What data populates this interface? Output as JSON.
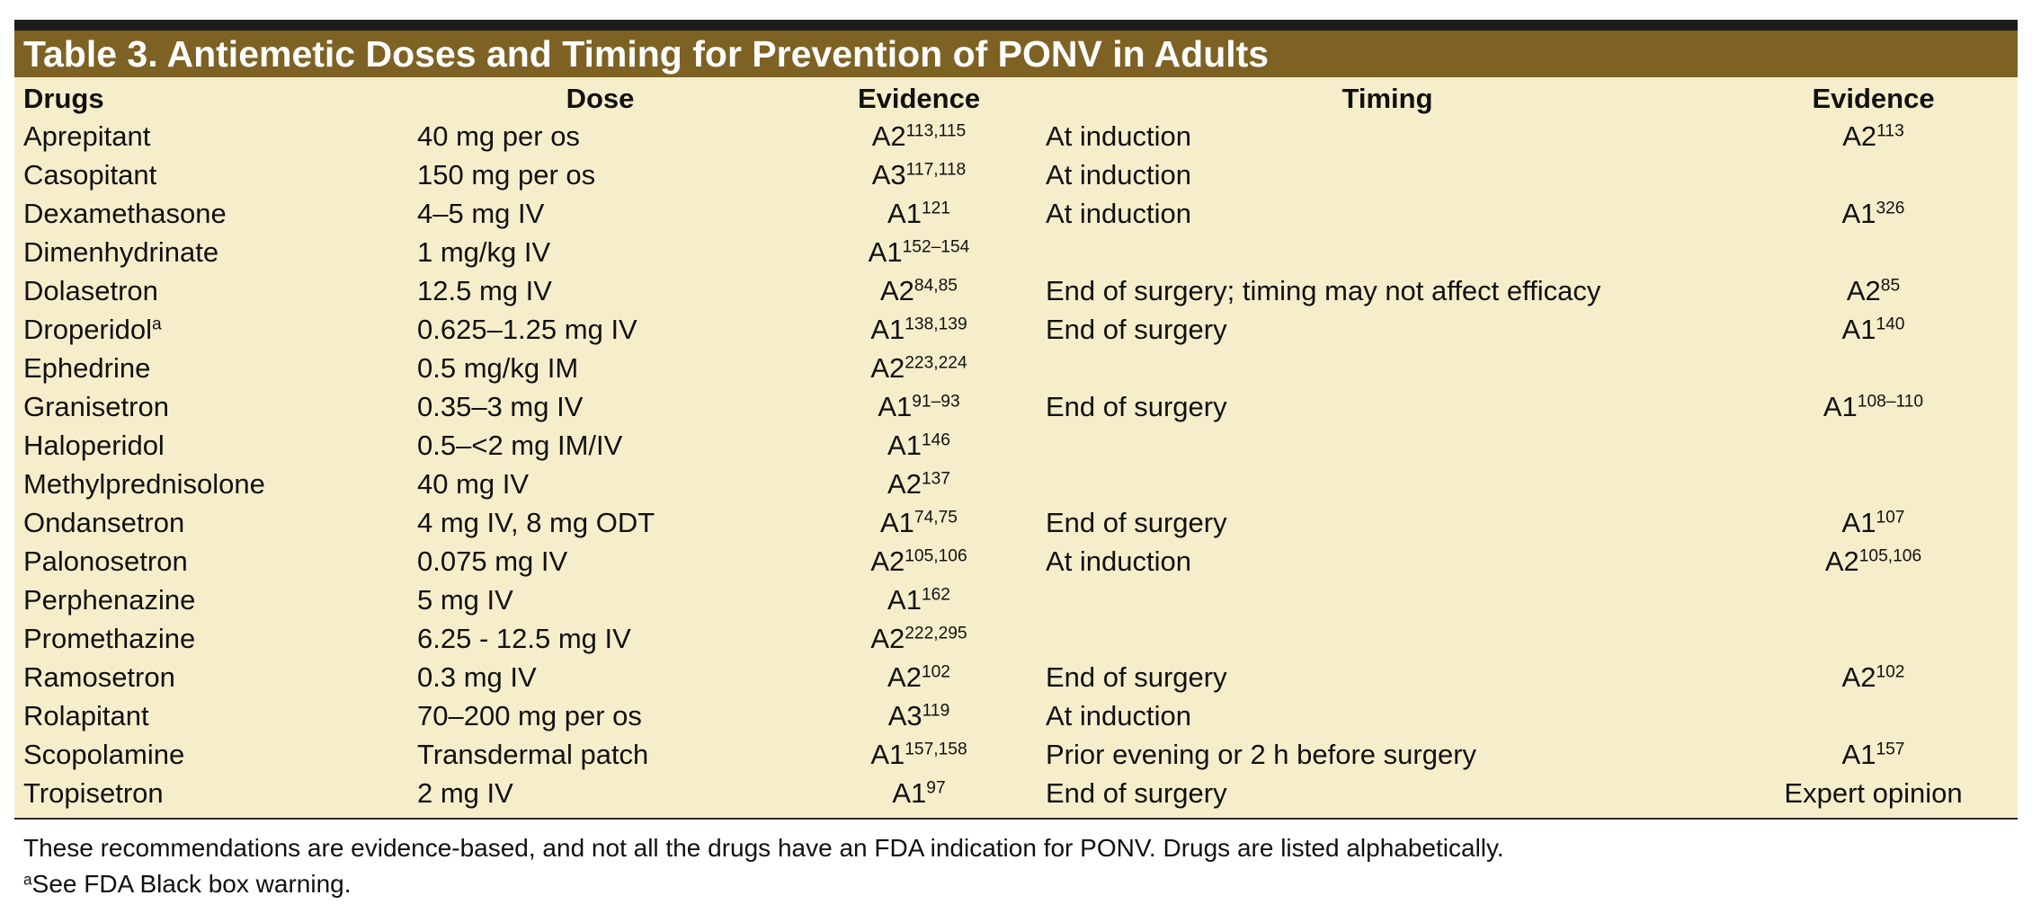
{
  "table": {
    "title": "Table 3.  Antiemetic Doses and Timing for Prevention of PONV in Adults",
    "headers": {
      "drugs": "Drugs",
      "dose": "Dose",
      "evidence1": "Evidence",
      "timing": "Timing",
      "evidence2": "Evidence"
    },
    "rows": [
      {
        "drug": "Aprepitant",
        "drug_sup": "",
        "dose": "40 mg per os",
        "ev1": "A2",
        "ev1_sup": "113,115",
        "timing": "At induction",
        "ev2": "A2",
        "ev2_sup": "113"
      },
      {
        "drug": "Casopitant",
        "drug_sup": "",
        "dose": "150 mg per os",
        "ev1": "A3",
        "ev1_sup": "117,118",
        "timing": "At induction",
        "ev2": "",
        "ev2_sup": ""
      },
      {
        "drug": "Dexamethasone",
        "drug_sup": "",
        "dose": "4–5 mg IV",
        "ev1": "A1",
        "ev1_sup": "121",
        "timing": "At induction",
        "ev2": "A1",
        "ev2_sup": "326"
      },
      {
        "drug": "Dimenhydrinate",
        "drug_sup": "",
        "dose": "1 mg/kg IV",
        "ev1": "A1",
        "ev1_sup": "152–154",
        "timing": "",
        "ev2": "",
        "ev2_sup": ""
      },
      {
        "drug": "Dolasetron",
        "drug_sup": "",
        "dose": "12.5 mg IV",
        "ev1": "A2",
        "ev1_sup": "84,85",
        "timing": "End of surgery; timing may not affect efficacy",
        "ev2": "A2",
        "ev2_sup": "85"
      },
      {
        "drug": "Droperidol",
        "drug_sup": "a",
        "dose": "0.625–1.25 mg IV",
        "ev1": "A1",
        "ev1_sup": "138,139",
        "timing": "End of surgery",
        "ev2": "A1",
        "ev2_sup": "140"
      },
      {
        "drug": "Ephedrine",
        "drug_sup": "",
        "dose": "0.5 mg/kg IM",
        "ev1": "A2",
        "ev1_sup": "223,224",
        "timing": "",
        "ev2": "",
        "ev2_sup": ""
      },
      {
        "drug": "Granisetron",
        "drug_sup": "",
        "dose": "0.35–3 mg IV",
        "ev1": "A1",
        "ev1_sup": "91–93",
        "timing": "End of surgery",
        "ev2": "A1",
        "ev2_sup": "108–110"
      },
      {
        "drug": "Haloperidol",
        "drug_sup": "",
        "dose": "0.5–<2 mg IM/IV",
        "ev1": "A1",
        "ev1_sup": "146",
        "timing": "",
        "ev2": "",
        "ev2_sup": ""
      },
      {
        "drug": "Methylprednisolone",
        "drug_sup": "",
        "dose": "40 mg IV",
        "ev1": "A2",
        "ev1_sup": "137",
        "timing": "",
        "ev2": "",
        "ev2_sup": ""
      },
      {
        "drug": "Ondansetron",
        "drug_sup": "",
        "dose": "4 mg IV, 8 mg ODT",
        "ev1": "A1",
        "ev1_sup": "74,75",
        "timing": "End of surgery",
        "ev2": "A1",
        "ev2_sup": "107"
      },
      {
        "drug": "Palonosetron",
        "drug_sup": "",
        "dose": "0.075 mg IV",
        "ev1": "A2",
        "ev1_sup": "105,106",
        "timing": "At induction",
        "ev2": "A2",
        "ev2_sup": "105,106"
      },
      {
        "drug": "Perphenazine",
        "drug_sup": "",
        "dose": "5 mg IV",
        "ev1": "A1",
        "ev1_sup": "162",
        "timing": "",
        "ev2": "",
        "ev2_sup": ""
      },
      {
        "drug": "Promethazine",
        "drug_sup": "",
        "dose": "6.25 - 12.5 mg IV",
        "ev1": "A2",
        "ev1_sup": "222,295",
        "timing": "",
        "ev2": "",
        "ev2_sup": ""
      },
      {
        "drug": "Ramosetron",
        "drug_sup": "",
        "dose": "0.3 mg IV",
        "ev1": "A2",
        "ev1_sup": "102",
        "timing": "End of surgery",
        "ev2": "A2",
        "ev2_sup": "102"
      },
      {
        "drug": "Rolapitant",
        "drug_sup": "",
        "dose": "70–200 mg per os",
        "ev1": "A3",
        "ev1_sup": "119",
        "timing": "At induction",
        "ev2": "",
        "ev2_sup": ""
      },
      {
        "drug": "Scopolamine",
        "drug_sup": "",
        "dose": "Transdermal patch",
        "ev1": "A1",
        "ev1_sup": "157,158",
        "timing": "Prior evening or 2 h before surgery",
        "ev2": "A1",
        "ev2_sup": "157"
      },
      {
        "drug": "Tropisetron",
        "drug_sup": "",
        "dose": "2 mg IV",
        "ev1": "A1",
        "ev1_sup": "97",
        "timing": "End of surgery",
        "ev2": "Expert opinion",
        "ev2_sup": ""
      }
    ]
  },
  "footnotes": {
    "note": "These recommendations are evidence-based, and not all the drugs have an FDA indication for PONV. Drugs are listed alphabetically.",
    "marker": "a",
    "warning": "See FDA Black box warning."
  },
  "colors": {
    "title_bar": "#7d6224",
    "table_background": "#f6eecb",
    "top_rule": "#1c1c1c"
  }
}
